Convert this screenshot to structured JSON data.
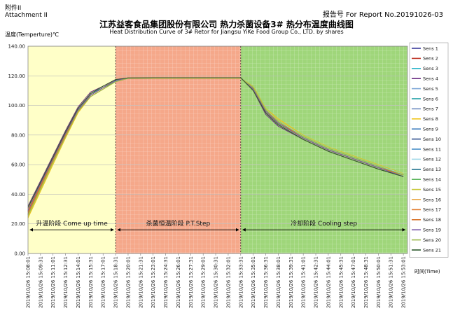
{
  "header": {
    "annex_cn": "附件II",
    "annex_en": "Attachment II",
    "report_no": "报告号 For Report No.20191026-03",
    "title_cn": "江苏益客食品集团股份有限公司 热力杀菌设备3# 热分布温度曲线图",
    "title_en": "Heat Distribution Curve of 3# Retor  for Jiangsu YiKe Food  Group Co., LTD. by shares"
  },
  "colors": {
    "phase_come_up": "#ffffc8",
    "phase_pt": "#f5a88a",
    "phase_cooling": "#9fd67a",
    "temp_line_main": "#444444"
  },
  "chart_data": {
    "type": "line",
    "ylabel": "温度(Temperture)℃",
    "xlabel": "时间(Time)",
    "ylim": [
      0,
      140
    ],
    "yticks": [
      "0.00",
      "20.00",
      "40.00",
      "60.00",
      "80.00",
      "100.00",
      "120.00",
      "140.00"
    ],
    "categories": [
      "2019/10/26 15:08:01",
      "2019/10/26 15:09:31",
      "2019/10/26 15:11:01",
      "2019/10/26 15:12:31",
      "2019/10/26 15:14:01",
      "2019/10/26 15:15:31",
      "2019/10/26 15:17:01",
      "2019/10/26 15:18:31",
      "2019/10/26 15:20:01",
      "2019/10/26 15:21:31",
      "2019/10/26 15:23:01",
      "2019/10/26 15:24:31",
      "2019/10/26 15:26:01",
      "2019/10/26 15:27:31",
      "2019/10/26 15:29:01",
      "2019/10/26 15:30:31",
      "2019/10/26 15:32:01",
      "2019/10/26 15:33:31",
      "2019/10/26 15:35:01",
      "2019/10/26 15:36:31",
      "2019/10/26 15:38:01",
      "2019/10/26 15:39:31",
      "2019/10/26 15:41:01",
      "2019/10/26 15:42:31",
      "2019/10/26 15:44:01",
      "2019/10/26 15:45:31",
      "2019/10/26 15:47:01",
      "2019/10/26 15:48:31",
      "2019/10/26 15:50:01",
      "2019/10/26 15:51:31",
      "2019/10/26 15:53:01"
    ],
    "phases": [
      {
        "label": "升温阶段 Come up time",
        "start_index": 0,
        "end_index": 7
      },
      {
        "label": "杀菌恒温阶段 P.T.Step",
        "start_index": 7,
        "end_index": 17
      },
      {
        "label": "冷却阶段  Cooling step",
        "start_index": 17,
        "end_index": 30.3
      }
    ],
    "phase_arrow_y": 16,
    "legend_position": "right",
    "series": [
      {
        "name": "Sens 1",
        "color": "#3a3a9a",
        "x": [
          0,
          1,
          2,
          3,
          4,
          5,
          6,
          7,
          8,
          10,
          12,
          14,
          16,
          17,
          18,
          19,
          20,
          22,
          24,
          26,
          28,
          30
        ],
        "values": [
          30,
          47,
          64,
          82,
          98,
          108,
          113,
          117,
          118.5,
          118.6,
          118.6,
          118.6,
          118.6,
          118.6,
          112,
          96,
          88,
          78,
          70,
          64,
          58,
          53
        ]
      },
      {
        "name": "Sens 2",
        "color": "#c0392b",
        "x": [
          0,
          1,
          2,
          3,
          4,
          5,
          6,
          7,
          8,
          10,
          12,
          14,
          16,
          17,
          18,
          19,
          20,
          22,
          24,
          26,
          28,
          30
        ],
        "values": [
          28,
          46,
          63,
          80,
          97,
          107,
          112,
          116.5,
          118.4,
          118.5,
          118.5,
          118.5,
          118.5,
          118.5,
          111,
          95,
          87,
          77,
          69,
          63,
          57,
          52
        ]
      },
      {
        "name": "Sens 3",
        "color": "#2bb5c9",
        "x": [
          0,
          1,
          2,
          3,
          4,
          5,
          6,
          7,
          8,
          10,
          12,
          14,
          16,
          17,
          18,
          19,
          20,
          22,
          24,
          26,
          28,
          30
        ],
        "values": [
          25,
          43,
          61,
          79,
          96,
          107,
          112,
          116,
          118.3,
          118.5,
          118.5,
          118.5,
          118.5,
          118.5,
          113,
          98,
          90,
          79,
          71,
          65,
          59,
          54
        ]
      },
      {
        "name": "Sens 4",
        "color": "#6a2d82",
        "x": [
          0,
          1,
          2,
          3,
          4,
          5,
          6,
          7,
          8,
          10,
          12,
          14,
          16,
          17,
          18,
          19,
          20,
          22,
          24,
          26,
          28,
          30
        ],
        "values": [
          32,
          49,
          66,
          83,
          99,
          109,
          113,
          117.5,
          118.6,
          118.7,
          118.7,
          118.7,
          118.7,
          118.7,
          110,
          94,
          86,
          77,
          69,
          63,
          57,
          52
        ]
      },
      {
        "name": "Sens 5",
        "color": "#7fa8d8",
        "x": [
          0,
          1,
          2,
          3,
          4,
          5,
          6,
          7,
          8,
          10,
          12,
          14,
          16,
          17,
          18,
          19,
          20,
          22,
          24,
          26,
          28,
          30
        ],
        "values": [
          27,
          45,
          62,
          80,
          96,
          106,
          111,
          116,
          118.3,
          118.5,
          118.5,
          118.5,
          118.5,
          118.5,
          112,
          97,
          89,
          79,
          71,
          65,
          59,
          53
        ]
      },
      {
        "name": "Sens 6",
        "color": "#1f9fa5",
        "x": [
          0,
          1,
          2,
          3,
          4,
          5,
          6,
          7,
          8,
          10,
          12,
          14,
          16,
          17,
          18,
          19,
          20,
          22,
          24,
          26,
          28,
          30
        ],
        "values": [
          29,
          47,
          64,
          81,
          97,
          108,
          112,
          117,
          118.5,
          118.6,
          118.6,
          118.6,
          118.6,
          118.6,
          111,
          96,
          88,
          78,
          70,
          64,
          58,
          53
        ]
      },
      {
        "name": "Sens 7",
        "color": "#6f8cc0",
        "x": [
          0,
          1,
          2,
          3,
          4,
          5,
          6,
          7,
          8,
          10,
          12,
          14,
          16,
          17,
          18,
          19,
          20,
          22,
          24,
          26,
          28,
          30
        ],
        "values": [
          26,
          44,
          62,
          80,
          97,
          107,
          112,
          116,
          118.4,
          118.5,
          118.5,
          118.5,
          118.5,
          118.5,
          112,
          96,
          88,
          78,
          70,
          64,
          58,
          53
        ]
      },
      {
        "name": "Sens 8",
        "color": "#f0c419",
        "x": [
          0,
          1,
          2,
          3,
          4,
          5,
          6,
          7,
          8,
          10,
          12,
          14,
          16,
          17,
          18,
          19,
          20,
          22,
          24,
          26,
          28,
          30
        ],
        "values": [
          24,
          42,
          60,
          78,
          95,
          106,
          111,
          116,
          118.3,
          118.4,
          118.4,
          118.4,
          118.4,
          118.4,
          113,
          98,
          91,
          80,
          72,
          66,
          60,
          54
        ]
      },
      {
        "name": "Sens 9",
        "color": "#3f7fbf",
        "x": [
          0,
          1,
          2,
          3,
          4,
          5,
          6,
          7,
          8,
          10,
          12,
          14,
          16,
          17,
          18,
          19,
          20,
          22,
          24,
          26,
          28,
          30
        ],
        "values": [
          31,
          48,
          65,
          82,
          98,
          108,
          113,
          117,
          118.6,
          118.6,
          118.6,
          118.6,
          118.6,
          118.6,
          111,
          95,
          87,
          77,
          69,
          63,
          57,
          52
        ]
      },
      {
        "name": "Sens 10",
        "color": "#2f4f8f",
        "x": [
          0,
          1,
          2,
          3,
          4,
          5,
          6,
          7,
          8,
          10,
          12,
          14,
          16,
          17,
          18,
          19,
          20,
          22,
          24,
          26,
          28,
          30
        ],
        "values": [
          30,
          47,
          64,
          81,
          97,
          107,
          112,
          117,
          118.5,
          118.6,
          118.6,
          118.6,
          118.6,
          118.6,
          111,
          95,
          87,
          77,
          69,
          63,
          57,
          52
        ]
      },
      {
        "name": "Sens 11",
        "color": "#4a90c8",
        "x": [
          0,
          1,
          2,
          3,
          4,
          5,
          6,
          7,
          8,
          10,
          12,
          14,
          16,
          17,
          18,
          19,
          20,
          22,
          24,
          26,
          28,
          30
        ],
        "values": [
          28,
          46,
          63,
          80,
          97,
          107,
          112,
          116.5,
          118.4,
          118.5,
          118.5,
          118.5,
          118.5,
          118.5,
          112,
          96,
          88,
          78,
          70,
          64,
          58,
          53
        ]
      },
      {
        "name": "Sens 12",
        "color": "#a0d8e8",
        "x": [
          0,
          1,
          2,
          3,
          4,
          5,
          6,
          7,
          8,
          10,
          12,
          14,
          16,
          17,
          18,
          19,
          20,
          22,
          24,
          26,
          28,
          30
        ],
        "values": [
          26,
          44,
          61,
          79,
          96,
          106,
          111,
          116,
          118.3,
          118.5,
          118.5,
          118.5,
          118.5,
          118.5,
          113,
          97,
          90,
          79,
          71,
          65,
          59,
          54
        ]
      },
      {
        "name": "Sens 13",
        "color": "#1a6f8a",
        "x": [
          0,
          1,
          2,
          3,
          4,
          5,
          6,
          7,
          8,
          10,
          12,
          14,
          16,
          17,
          18,
          19,
          20,
          22,
          24,
          26,
          28,
          30
        ],
        "values": [
          29,
          46,
          63,
          81,
          97,
          107,
          112,
          117,
          118.5,
          118.6,
          118.6,
          118.6,
          118.6,
          118.6,
          111,
          96,
          88,
          78,
          70,
          64,
          58,
          53
        ]
      },
      {
        "name": "Sens 14",
        "color": "#5ab45a",
        "x": [
          0,
          1,
          2,
          3,
          4,
          5,
          6,
          7,
          8,
          10,
          12,
          14,
          16,
          17,
          18,
          19,
          20,
          22,
          24,
          26,
          28,
          30
        ],
        "values": [
          27,
          45,
          62,
          80,
          96,
          107,
          112,
          116,
          118.4,
          118.5,
          118.5,
          118.5,
          118.5,
          118.5,
          112,
          97,
          89,
          79,
          71,
          65,
          59,
          53
        ]
      },
      {
        "name": "Sens 15",
        "color": "#c8c83a",
        "x": [
          0,
          1,
          2,
          3,
          4,
          5,
          6,
          7,
          8,
          10,
          12,
          14,
          16,
          17,
          18,
          19,
          20,
          22,
          24,
          26,
          28,
          30
        ],
        "values": [
          25,
          43,
          61,
          79,
          96,
          106,
          111,
          116,
          118.3,
          118.4,
          118.4,
          118.4,
          118.4,
          118.4,
          113,
          98,
          90,
          80,
          72,
          66,
          60,
          54
        ]
      },
      {
        "name": "Sens 16",
        "color": "#e8a23a",
        "x": [
          0,
          1,
          2,
          3,
          4,
          5,
          6,
          7,
          8,
          10,
          12,
          14,
          16,
          17,
          18,
          19,
          20,
          22,
          24,
          26,
          28,
          30
        ],
        "values": [
          30,
          48,
          65,
          82,
          98,
          108,
          113,
          117,
          118.6,
          118.7,
          118.7,
          118.7,
          118.7,
          118.7,
          110,
          95,
          87,
          77,
          69,
          63,
          57,
          52
        ]
      },
      {
        "name": "Sens 17",
        "color": "#e07a2a",
        "x": [
          0,
          1,
          2,
          3,
          4,
          5,
          6,
          7,
          8,
          10,
          12,
          14,
          16,
          17,
          18,
          19,
          20,
          22,
          24,
          26,
          28,
          30
        ],
        "values": [
          28,
          46,
          63,
          81,
          97,
          107,
          112,
          117,
          118.5,
          118.6,
          118.6,
          118.6,
          118.6,
          118.6,
          111,
          96,
          88,
          78,
          70,
          64,
          58,
          53
        ]
      },
      {
        "name": "Sens 18",
        "color": "#d8742a",
        "x": [
          0,
          1,
          2,
          3,
          4,
          5,
          6,
          7,
          8,
          10,
          12,
          14,
          16,
          17,
          18,
          19,
          20,
          22,
          24,
          26,
          28,
          30
        ],
        "values": [
          27,
          45,
          62,
          80,
          96,
          106,
          111,
          116,
          118.4,
          118.5,
          118.5,
          118.5,
          118.5,
          118.5,
          112,
          96,
          89,
          78,
          70,
          64,
          58,
          53
        ]
      },
      {
        "name": "Sens 19",
        "color": "#7a5aa8",
        "x": [
          0,
          1,
          2,
          3,
          4,
          5,
          6,
          7,
          8,
          10,
          12,
          14,
          16,
          17,
          18,
          19,
          20,
          22,
          24,
          26,
          28,
          30
        ],
        "values": [
          29,
          47,
          64,
          81,
          97,
          107,
          112,
          117,
          118.5,
          118.6,
          118.6,
          118.6,
          118.6,
          118.6,
          111,
          96,
          88,
          78,
          70,
          64,
          58,
          52
        ]
      },
      {
        "name": "Sens 20",
        "color": "#9ab84a",
        "x": [
          0,
          1,
          2,
          3,
          4,
          5,
          6,
          7,
          8,
          10,
          12,
          14,
          16,
          17,
          18,
          19,
          20,
          22,
          24,
          26,
          28,
          30
        ],
        "values": [
          26,
          44,
          62,
          79,
          96,
          106,
          111,
          116,
          118.3,
          118.5,
          118.5,
          118.5,
          118.5,
          118.5,
          112,
          97,
          89,
          79,
          71,
          65,
          59,
          53
        ]
      },
      {
        "name": "Sens 21",
        "color": "#2d5a2d",
        "x": [
          0,
          1,
          2,
          3,
          4,
          5,
          6,
          7,
          8,
          10,
          12,
          14,
          16,
          17,
          18,
          19,
          20,
          22,
          24,
          26,
          28,
          30
        ],
        "values": [
          31,
          48,
          65,
          82,
          98,
          108,
          113,
          117.5,
          118.6,
          118.7,
          118.7,
          118.7,
          118.7,
          118.7,
          110,
          95,
          87,
          77,
          69,
          63,
          57,
          52
        ]
      }
    ]
  }
}
